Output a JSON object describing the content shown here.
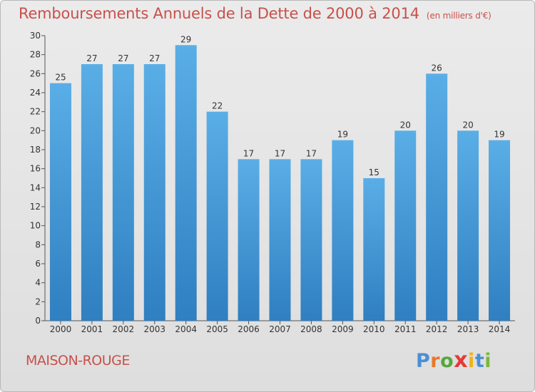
{
  "chart_data": {
    "type": "bar",
    "title": "Remboursements Annuels de la Dette de 2000 à 2014",
    "unit_note": "(en milliers d'€)",
    "categories": [
      "2000",
      "2001",
      "2002",
      "2003",
      "2004",
      "2005",
      "2006",
      "2007",
      "2008",
      "2009",
      "2010",
      "2011",
      "2012",
      "2013",
      "2014"
    ],
    "values": [
      25,
      27,
      27,
      27,
      29,
      22,
      17,
      17,
      17,
      19,
      15,
      20,
      26,
      20,
      19
    ],
    "ylim": [
      0,
      30
    ],
    "yticks": [
      0,
      2,
      4,
      6,
      8,
      10,
      12,
      14,
      16,
      18,
      20,
      22,
      24,
      26,
      28,
      30
    ],
    "xlabel": "",
    "ylabel": "",
    "grid": false,
    "bar_color_top": "#5aaee6",
    "bar_color_bottom": "#2f7fc1",
    "title_color": "#c8504a"
  },
  "footer": {
    "city": "MAISON-ROUGE",
    "logo_letters": [
      "P",
      "r",
      "o",
      "x",
      "i",
      "t",
      "i"
    ],
    "logo_colors": [
      "#4a8fd6",
      "#e7782d",
      "#55a83b",
      "#e53935",
      "#f1b11a",
      "#4a8fd6",
      "#7bb83a"
    ]
  }
}
